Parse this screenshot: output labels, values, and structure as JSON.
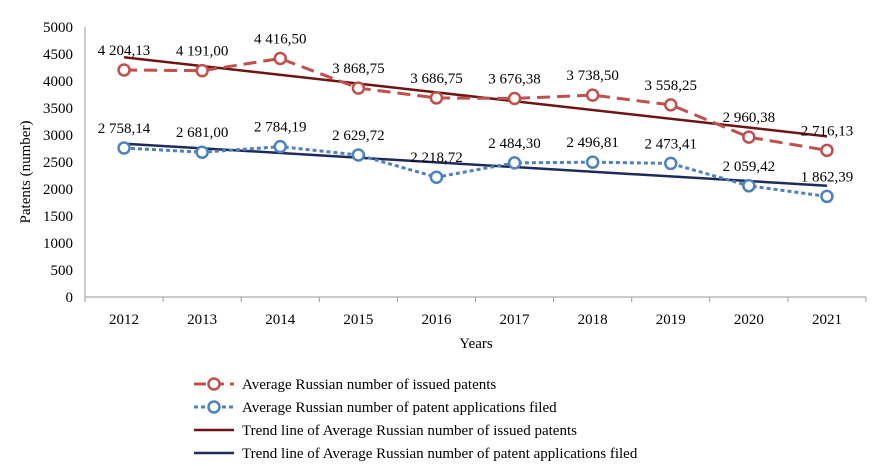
{
  "chart_data": {
    "type": "line",
    "title": "",
    "xlabel": "Years",
    "ylabel": "Patents (number)",
    "ylim": [
      0,
      5000
    ],
    "ytick_step": 500,
    "yticks": [
      "0",
      "500",
      "1000",
      "1500",
      "2000",
      "2500",
      "3000",
      "3500",
      "4000",
      "4500",
      "5000"
    ],
    "categories": [
      "2012",
      "2013",
      "2014",
      "2015",
      "2016",
      "2017",
      "2018",
      "2019",
      "2020",
      "2021"
    ],
    "series": [
      {
        "name": "Average Russian number of issued patents",
        "color": "#c0504d",
        "style": "long-dash",
        "marker": "circle",
        "values": [
          4204.13,
          4191.0,
          4416.5,
          3868.75,
          3686.75,
          3676.38,
          3738.5,
          3558.25,
          2960.38,
          2716.13
        ],
        "labels": [
          "4 204,13",
          "4 191,00",
          "4 416,50",
          "3 868,75",
          "3 686,75",
          "3 676,38",
          "3 738,50",
          "3 558,25",
          "2 960,38",
          "2 716,13"
        ]
      },
      {
        "name": "Average Russian number of patent applications filed",
        "color": "#4f81bd",
        "style": "short-dash",
        "marker": "circle",
        "values": [
          2758.14,
          2681.0,
          2784.19,
          2629.72,
          2218.72,
          2484.3,
          2496.81,
          2473.41,
          2059.42,
          1862.39
        ],
        "labels": [
          "2 758,14",
          "2 681,00",
          "2 784,19",
          "2 629,72",
          "2 218,72",
          "2 484,30",
          "2 496,81",
          "2 473,41",
          "2 059,42",
          "1 862,39"
        ]
      }
    ],
    "trendlines": [
      {
        "name": "Trend line of Average Russian number of issued patents",
        "color": "#6e1414",
        "start": 4440,
        "end": 2975
      },
      {
        "name": "Trend line of Average Russian number of patent applications filed",
        "color": "#1f2a5c",
        "start": 2840,
        "end": 2060
      }
    ],
    "legend_position": "bottom"
  }
}
